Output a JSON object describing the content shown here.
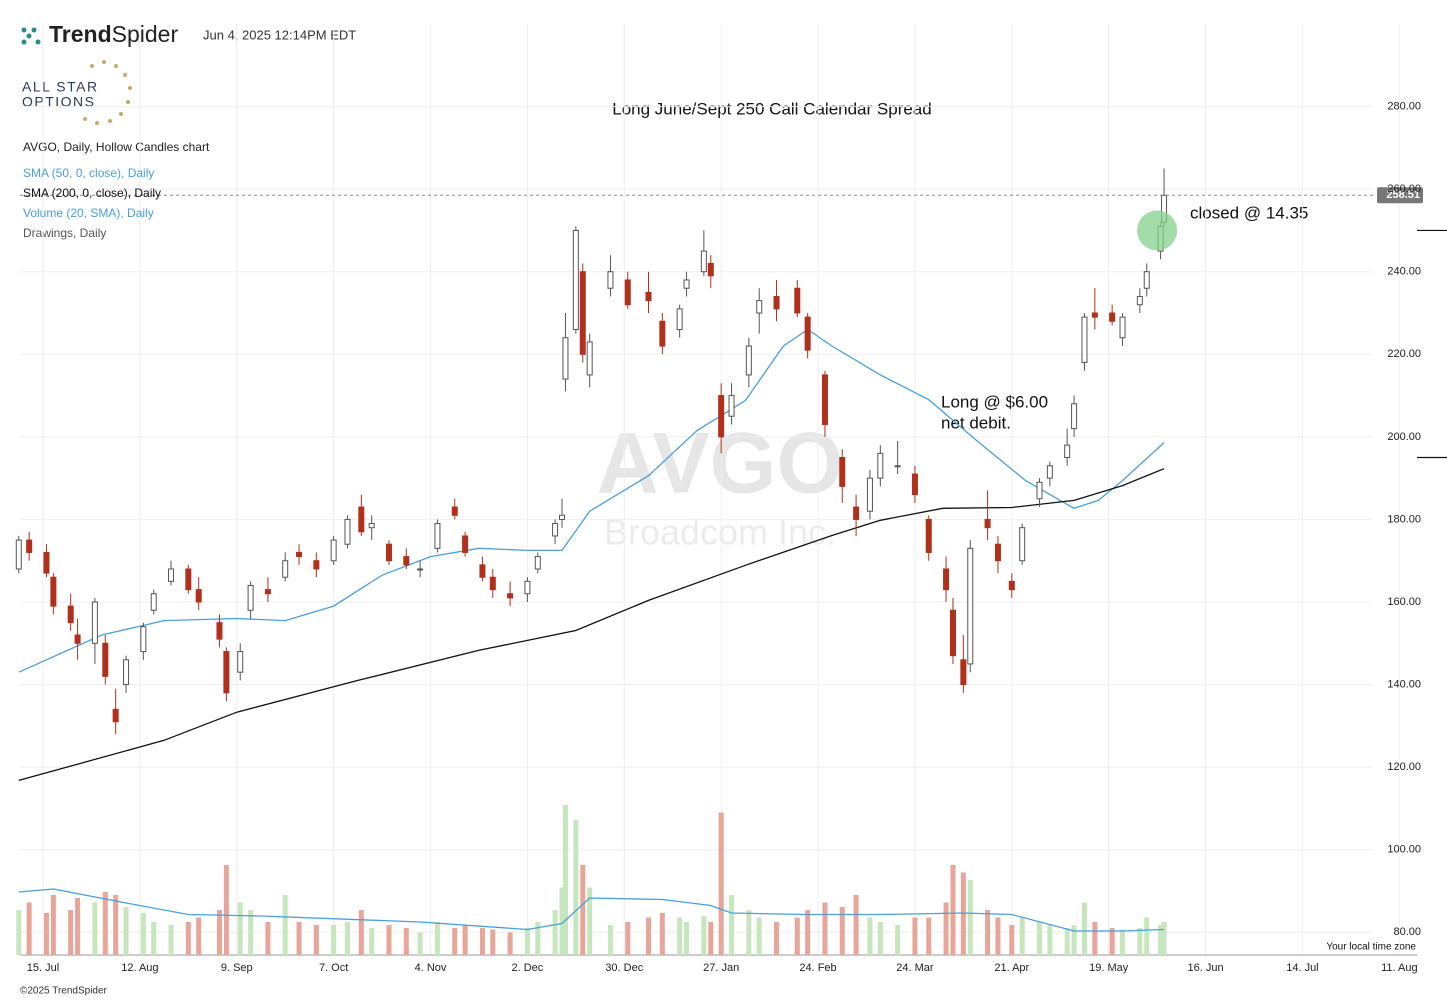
{
  "header": {
    "brand_bold": "Trend",
    "brand_light": "Spider",
    "timestamp": "Jun 4, 2025 12:14PM EDT",
    "logo_top": "ALL STAR",
    "logo_bottom": "OPTIONS"
  },
  "info": {
    "chart": "AVGO, Daily, Hollow Candles chart",
    "drawings": "Drawings, Daily"
  },
  "watermark": {
    "symbol": "AVGO",
    "name": "Broadcom Inc."
  },
  "footer": {
    "copyright": "©2025 TrendSpider",
    "timezone": "Your local time zone"
  },
  "chart_data": {
    "type": "candlestick",
    "title": "Long June/Sept 250 Call Calendar Spread",
    "x": [
      "8. Jul",
      "11. Jul",
      "16. Jul",
      "18. Jul",
      "23. Jul",
      "25. Jul",
      "30. Jul",
      "2. Aug",
      "5. Aug",
      "8. Aug",
      "13. Aug",
      "16. Aug",
      "21. Aug",
      "26. Aug",
      "29. Aug",
      "4. Sep",
      "6. Sep",
      "10. Sep",
      "13. Sep",
      "18. Sep",
      "23. Sep",
      "27. Sep",
      "2. Oct",
      "7. Oct",
      "11. Oct",
      "15. Oct",
      "18. Oct",
      "23. Oct",
      "28. Oct",
      "1. Nov",
      "6. Nov",
      "11. Nov",
      "14. Nov",
      "19. Nov",
      "22. Nov",
      "27. Nov",
      "2. Dec",
      "5. Dec",
      "10. Dec",
      "12. Dec",
      "13. Dec",
      "16. Dec",
      "18. Dec",
      "20. Dec",
      "26. Dec",
      "31. Dec",
      "6. Jan",
      "10. Jan",
      "15. Jan",
      "17. Jan",
      "22. Jan",
      "24. Jan",
      "27. Jan",
      "30. Jan",
      "4. Feb",
      "7. Feb",
      "12. Feb",
      "18. Feb",
      "21. Feb",
      "26. Feb",
      "3. Mar",
      "7. Mar",
      "11. Mar",
      "14. Mar",
      "19. Mar",
      "24. Mar",
      "28. Mar",
      "2. Apr",
      "4. Apr",
      "7. Apr",
      "9. Apr",
      "14. Apr",
      "17. Apr",
      "21. Apr",
      "24. Apr",
      "29. Apr",
      "2. May",
      "7. May",
      "9. May",
      "12. May",
      "15. May",
      "20. May",
      "23. May",
      "28. May",
      "30. May",
      "3. Jun",
      "4. Jun"
    ],
    "open": [
      168,
      175,
      172,
      166,
      159,
      152,
      150,
      150,
      134,
      140,
      148,
      158,
      165,
      168,
      163,
      155,
      148,
      143,
      158,
      163,
      166,
      172,
      170,
      170,
      174,
      183,
      178,
      174,
      171,
      168,
      173,
      183,
      176,
      169,
      166,
      162,
      162,
      168,
      176,
      180,
      214,
      226,
      240,
      215,
      236,
      238,
      235,
      228,
      226,
      236,
      240,
      242,
      210,
      205,
      215,
      230,
      234,
      236,
      229,
      215,
      195,
      183,
      182,
      190,
      193,
      191,
      180,
      168,
      158,
      146,
      145,
      180,
      174,
      165,
      170,
      185,
      190,
      195,
      202,
      218,
      230,
      230,
      224,
      232,
      236,
      245,
      252
    ],
    "high": [
      176,
      177,
      174,
      167,
      162,
      156,
      161,
      152,
      139,
      147,
      155,
      163,
      170,
      169,
      166,
      157,
      149,
      150,
      165,
      166,
      172,
      174,
      172,
      176,
      181,
      186,
      181,
      175,
      173,
      170,
      180,
      185,
      177,
      171,
      168,
      165,
      166,
      172,
      180,
      185,
      230,
      251,
      242,
      225,
      244,
      240,
      240,
      230,
      232,
      240,
      250,
      244,
      213,
      213,
      224,
      236,
      238,
      238,
      230,
      216,
      197,
      186,
      192,
      198,
      199,
      193,
      181,
      171,
      161,
      152,
      175,
      187,
      176,
      167,
      179,
      190,
      194,
      202,
      210,
      230,
      236,
      232,
      230,
      236,
      242,
      252,
      265
    ],
    "low": [
      167,
      170,
      166,
      157,
      153,
      146,
      145,
      140,
      128,
      138,
      146,
      157,
      164,
      162,
      158,
      149,
      136,
      141,
      156,
      160,
      165,
      169,
      166,
      169,
      173,
      176,
      175,
      169,
      168,
      166,
      172,
      180,
      171,
      165,
      161,
      159,
      160,
      167,
      174,
      178,
      211,
      225,
      218,
      212,
      234,
      231,
      230,
      220,
      224,
      234,
      239,
      236,
      196,
      203,
      212,
      225,
      228,
      229,
      219,
      200,
      184,
      176,
      180,
      188,
      191,
      184,
      170,
      160,
      145,
      138,
      143,
      175,
      167,
      161,
      169,
      183,
      188,
      193,
      200,
      216,
      226,
      227,
      222,
      230,
      234,
      243,
      251
    ],
    "close": [
      175,
      172,
      167,
      159,
      155,
      150,
      160,
      142,
      131,
      146,
      154,
      162,
      168,
      163,
      160,
      151,
      138,
      148,
      164,
      162,
      170,
      171,
      168,
      175,
      180,
      177,
      179,
      170,
      169,
      168,
      179,
      181,
      172,
      166,
      163,
      161,
      165,
      171,
      179,
      181,
      224,
      250,
      220,
      223,
      240,
      232,
      233,
      222,
      231,
      238,
      245,
      239,
      200,
      210,
      222,
      233,
      231,
      230,
      221,
      203,
      188,
      180,
      190,
      196,
      193,
      186,
      172,
      163,
      147,
      140,
      173,
      178,
      170,
      163,
      178,
      189,
      193,
      198,
      208,
      229,
      229,
      228,
      229,
      234,
      240,
      251,
      258.51
    ],
    "volume": [
      30,
      35,
      28,
      40,
      30,
      38,
      35,
      42,
      40,
      32,
      28,
      22,
      20,
      22,
      25,
      30,
      60,
      35,
      30,
      22,
      40,
      22,
      20,
      20,
      22,
      30,
      18,
      20,
      18,
      15,
      22,
      18,
      20,
      18,
      17,
      15,
      18,
      22,
      30,
      45,
      100,
      90,
      60,
      45,
      20,
      22,
      25,
      28,
      25,
      22,
      26,
      22,
      95,
      40,
      30,
      25,
      22,
      25,
      30,
      35,
      32,
      40,
      25,
      22,
      20,
      25,
      25,
      35,
      60,
      55,
      50,
      30,
      25,
      20,
      25,
      22,
      20,
      18,
      20,
      35,
      22,
      18,
      17,
      18,
      25,
      20,
      22
    ],
    "up_color": "#555555",
    "down_color": "#b0301c",
    "volume_up_color": "#c6e6bd",
    "volume_down_color": "#e8a59a",
    "series": [
      {
        "name": "SMA (50, 0, close), Daily",
        "color": "#4a9fdc",
        "x": [
          "8. Jul",
          "1. Aug",
          "19. Aug",
          "9. Sep",
          "23. Sep",
          "7. Oct",
          "21. Oct",
          "4. Nov",
          "18. Nov",
          "2. Dec",
          "12. Dec",
          "20. Dec",
          "6. Jan",
          "20. Jan",
          "3. Feb",
          "14. Feb",
          "21. Feb",
          "28. Feb",
          "14. Mar",
          "28. Mar",
          "11. Apr",
          "25. Apr",
          "5. May",
          "9. May",
          "16. May",
          "23. May",
          "4. Jun"
        ],
        "values": [
          143,
          152,
          155.5,
          156,
          155.5,
          159,
          166.5,
          171,
          173,
          172.5,
          172.5,
          182,
          190.6,
          201.5,
          208.8,
          222,
          226,
          222,
          215,
          209,
          199,
          189.4,
          184.6,
          182.7,
          184.6,
          189.4,
          198.6
        ]
      },
      {
        "name": "SMA (200, 0, close), Daily",
        "color": "#111111",
        "x": [
          "8. Jul",
          "19. Aug",
          "9. Sep",
          "14. Oct",
          "18. Nov",
          "16. Dec",
          "6. Jan",
          "3. Feb",
          "28. Feb",
          "14. Mar",
          "1. Apr",
          "21. Apr",
          "9. May",
          "23. May",
          "4. Jun"
        ],
        "values": [
          116.8,
          126.5,
          133.3,
          141,
          148.3,
          153.1,
          160.4,
          168.9,
          176.1,
          179.8,
          182.7,
          182.9,
          184.6,
          188.2,
          192.3
        ]
      },
      {
        "name": "Volume (20, SMA), Daily",
        "color": "#4a9fdc",
        "axis": "volume",
        "x": [
          "8. Jul",
          "18. Jul",
          "5. Aug",
          "26. Aug",
          "16. Sep",
          "1. Nov",
          "2. Dec",
          "12. Dec",
          "20. Dec",
          "10. Jan",
          "24. Jan",
          "30. Jan",
          "21. Feb",
          "14. Mar",
          "7. Apr",
          "21. Apr",
          "9. May",
          "23. May",
          "4. Jun"
        ],
        "values": [
          42,
          44,
          36,
          27,
          26,
          22,
          17,
          21,
          38,
          37,
          33,
          28,
          27,
          27,
          28,
          27,
          16,
          16,
          17
        ]
      }
    ],
    "ylim": [
      74.5,
      300
    ],
    "yticks": [
      {
        "value": 80,
        "label": "80.00"
      },
      {
        "value": 100,
        "label": "100.00"
      },
      {
        "value": 120,
        "label": "120.00"
      },
      {
        "value": 140,
        "label": "140.00"
      },
      {
        "value": 160,
        "label": "160.00"
      },
      {
        "value": 180,
        "label": "180.00"
      },
      {
        "value": 200,
        "label": "200.00"
      },
      {
        "value": 220,
        "label": "220.00"
      },
      {
        "value": 240,
        "label": "240.00"
      },
      {
        "value": 260,
        "label": "260.00"
      },
      {
        "value": 280,
        "label": "280.00"
      }
    ],
    "xticks": [
      "15. Jul",
      "12. Aug",
      "9. Sep",
      "7. Oct",
      "4. Nov",
      "2. Dec",
      "30. Dec",
      "27. Jan",
      "24. Feb",
      "24. Mar",
      "21. Apr",
      "19. May",
      "16. Jun",
      "14. Jul",
      "11. Aug"
    ],
    "grid": true,
    "last_price": 258.51,
    "hlines": [
      {
        "value": 250,
        "label": "250.00",
        "start": "2. May"
      },
      {
        "value": 195,
        "label": "195.00",
        "start": "12. May"
      }
    ],
    "markers": [
      {
        "x": "6. May",
        "value": 197.5,
        "color": "#b9cde3"
      },
      {
        "x": "2. Jun",
        "value": 250,
        "color": "#86d08c"
      }
    ],
    "annotations": [
      {
        "text": "Long @ $6.00"
      },
      {
        "text": "net debit."
      },
      {
        "text": "closed @ 14.35"
      }
    ]
  }
}
